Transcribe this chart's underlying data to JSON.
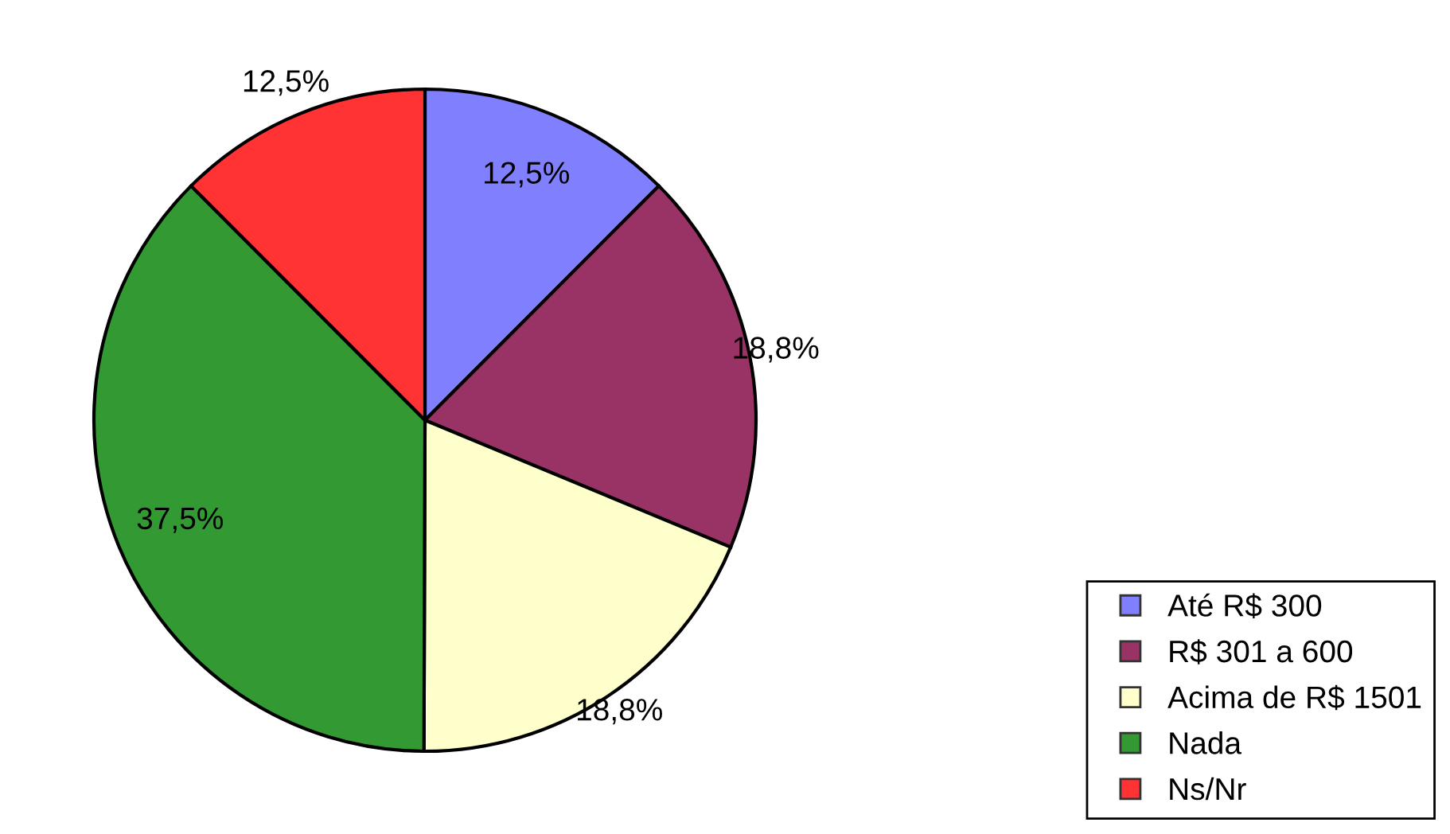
{
  "chart_data": {
    "type": "pie",
    "categories": [
      "Até R$ 300",
      "R$ 301 a 600",
      "Acima de R$ 1501",
      "Nada",
      "Ns/Nr"
    ],
    "values": [
      12.5,
      18.8,
      18.8,
      37.5,
      12.5
    ],
    "value_labels": [
      "12,5%",
      "18,8%",
      "18,8%",
      "37,5%",
      "12,5%"
    ],
    "colors": [
      "#8080ff",
      "#993366",
      "#ffffcc",
      "#339933",
      "#ff3333"
    ],
    "legend": "bottom right"
  }
}
